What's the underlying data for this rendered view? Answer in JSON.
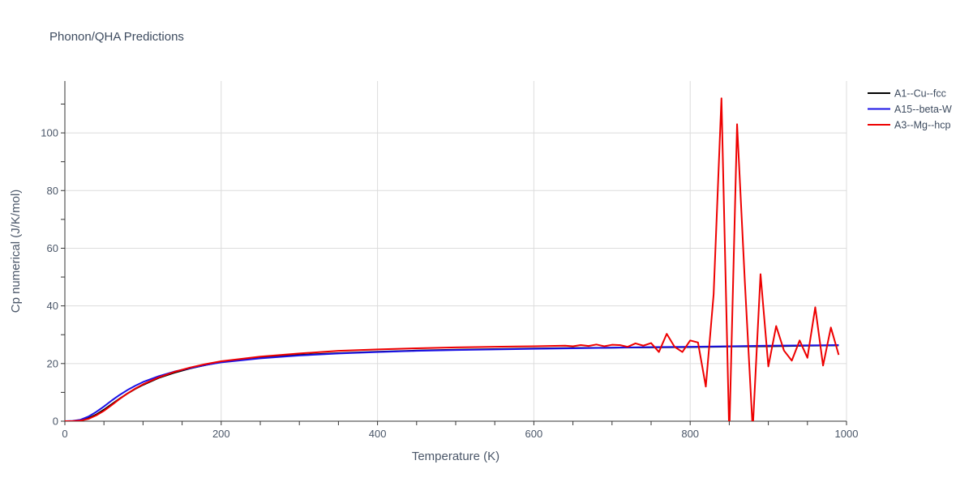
{
  "chart_data": {
    "type": "line",
    "title": "Phonon/QHA Predictions",
    "xlabel": "Temperature (K)",
    "ylabel": "Cp numerical (J/K/mol)",
    "xlim": [
      0,
      1000
    ],
    "ylim": [
      0,
      118
    ],
    "x_ticks": [
      0,
      200,
      400,
      600,
      800,
      1000
    ],
    "y_ticks": [
      0,
      20,
      40,
      60,
      80,
      100
    ],
    "grid": true,
    "legend_position": "top-right",
    "series": [
      {
        "name": "A1--Cu--fcc",
        "color": "#000000",
        "points": [
          [
            0,
            0
          ],
          [
            10,
            0.05
          ],
          [
            20,
            0.3
          ],
          [
            30,
            1.0
          ],
          [
            40,
            2.3
          ],
          [
            50,
            4.0
          ],
          [
            60,
            5.9
          ],
          [
            70,
            7.8
          ],
          [
            80,
            9.6
          ],
          [
            90,
            11.2
          ],
          [
            100,
            12.6
          ],
          [
            120,
            15.0
          ],
          [
            140,
            16.8
          ],
          [
            160,
            18.3
          ],
          [
            180,
            19.5
          ],
          [
            200,
            20.5
          ],
          [
            250,
            22.0
          ],
          [
            300,
            23.0
          ],
          [
            350,
            23.6
          ],
          [
            400,
            24.1
          ],
          [
            450,
            24.5
          ],
          [
            500,
            24.8
          ],
          [
            550,
            25.0
          ],
          [
            600,
            25.2
          ],
          [
            650,
            25.4
          ],
          [
            700,
            25.5
          ],
          [
            750,
            25.6
          ],
          [
            800,
            25.7
          ],
          [
            850,
            25.9
          ],
          [
            900,
            26.0
          ],
          [
            950,
            26.2
          ],
          [
            990,
            26.3
          ]
        ]
      },
      {
        "name": "A15--beta-W",
        "color": "#1a12e6",
        "points": [
          [
            0,
            0
          ],
          [
            10,
            0.1
          ],
          [
            20,
            0.5
          ],
          [
            30,
            1.6
          ],
          [
            40,
            3.2
          ],
          [
            50,
            5.1
          ],
          [
            60,
            7.2
          ],
          [
            70,
            9.1
          ],
          [
            80,
            10.8
          ],
          [
            90,
            12.3
          ],
          [
            100,
            13.6
          ],
          [
            120,
            15.6
          ],
          [
            140,
            17.2
          ],
          [
            160,
            18.4
          ],
          [
            180,
            19.5
          ],
          [
            200,
            20.4
          ],
          [
            250,
            21.8
          ],
          [
            300,
            22.8
          ],
          [
            350,
            23.5
          ],
          [
            400,
            24.0
          ],
          [
            450,
            24.4
          ],
          [
            500,
            24.7
          ],
          [
            550,
            24.9
          ],
          [
            600,
            25.1
          ],
          [
            650,
            25.3
          ],
          [
            700,
            25.5
          ],
          [
            750,
            25.7
          ],
          [
            800,
            25.8
          ],
          [
            850,
            26.0
          ],
          [
            900,
            26.2
          ],
          [
            950,
            26.3
          ],
          [
            990,
            26.4
          ]
        ]
      },
      {
        "name": "A3--Mg--hcp",
        "color": "#ee0000",
        "points": [
          [
            0,
            0
          ],
          [
            10,
            0.05
          ],
          [
            20,
            0.2
          ],
          [
            30,
            0.8
          ],
          [
            40,
            2.0
          ],
          [
            50,
            3.6
          ],
          [
            60,
            5.6
          ],
          [
            70,
            7.7
          ],
          [
            80,
            9.6
          ],
          [
            90,
            11.3
          ],
          [
            100,
            12.8
          ],
          [
            120,
            15.2
          ],
          [
            140,
            17.1
          ],
          [
            160,
            18.6
          ],
          [
            180,
            19.8
          ],
          [
            200,
            20.8
          ],
          [
            250,
            22.4
          ],
          [
            300,
            23.5
          ],
          [
            350,
            24.4
          ],
          [
            400,
            24.9
          ],
          [
            450,
            25.3
          ],
          [
            500,
            25.6
          ],
          [
            550,
            25.8
          ],
          [
            600,
            26.0
          ],
          [
            640,
            26.2
          ],
          [
            650,
            26.0
          ],
          [
            660,
            26.4
          ],
          [
            670,
            26.1
          ],
          [
            680,
            26.6
          ],
          [
            690,
            26.0
          ],
          [
            700,
            26.5
          ],
          [
            710,
            26.4
          ],
          [
            720,
            25.8
          ],
          [
            730,
            27.0
          ],
          [
            740,
            26.2
          ],
          [
            750,
            27.1
          ],
          [
            760,
            24.0
          ],
          [
            770,
            30.3
          ],
          [
            780,
            25.8
          ],
          [
            790,
            24.0
          ],
          [
            800,
            28.0
          ],
          [
            810,
            27.3
          ],
          [
            820,
            12.0
          ],
          [
            830,
            44.0
          ],
          [
            840,
            112.0
          ],
          [
            850,
            -5.0
          ],
          [
            860,
            103.0
          ],
          [
            870,
            48.0
          ],
          [
            880,
            -3.0
          ],
          [
            890,
            51.0
          ],
          [
            900,
            19.0
          ],
          [
            910,
            33.0
          ],
          [
            920,
            24.5
          ],
          [
            930,
            21.0
          ],
          [
            940,
            28.0
          ],
          [
            950,
            22.0
          ],
          [
            960,
            39.5
          ],
          [
            970,
            19.3
          ],
          [
            980,
            32.5
          ],
          [
            990,
            23.0
          ]
        ]
      }
    ]
  }
}
